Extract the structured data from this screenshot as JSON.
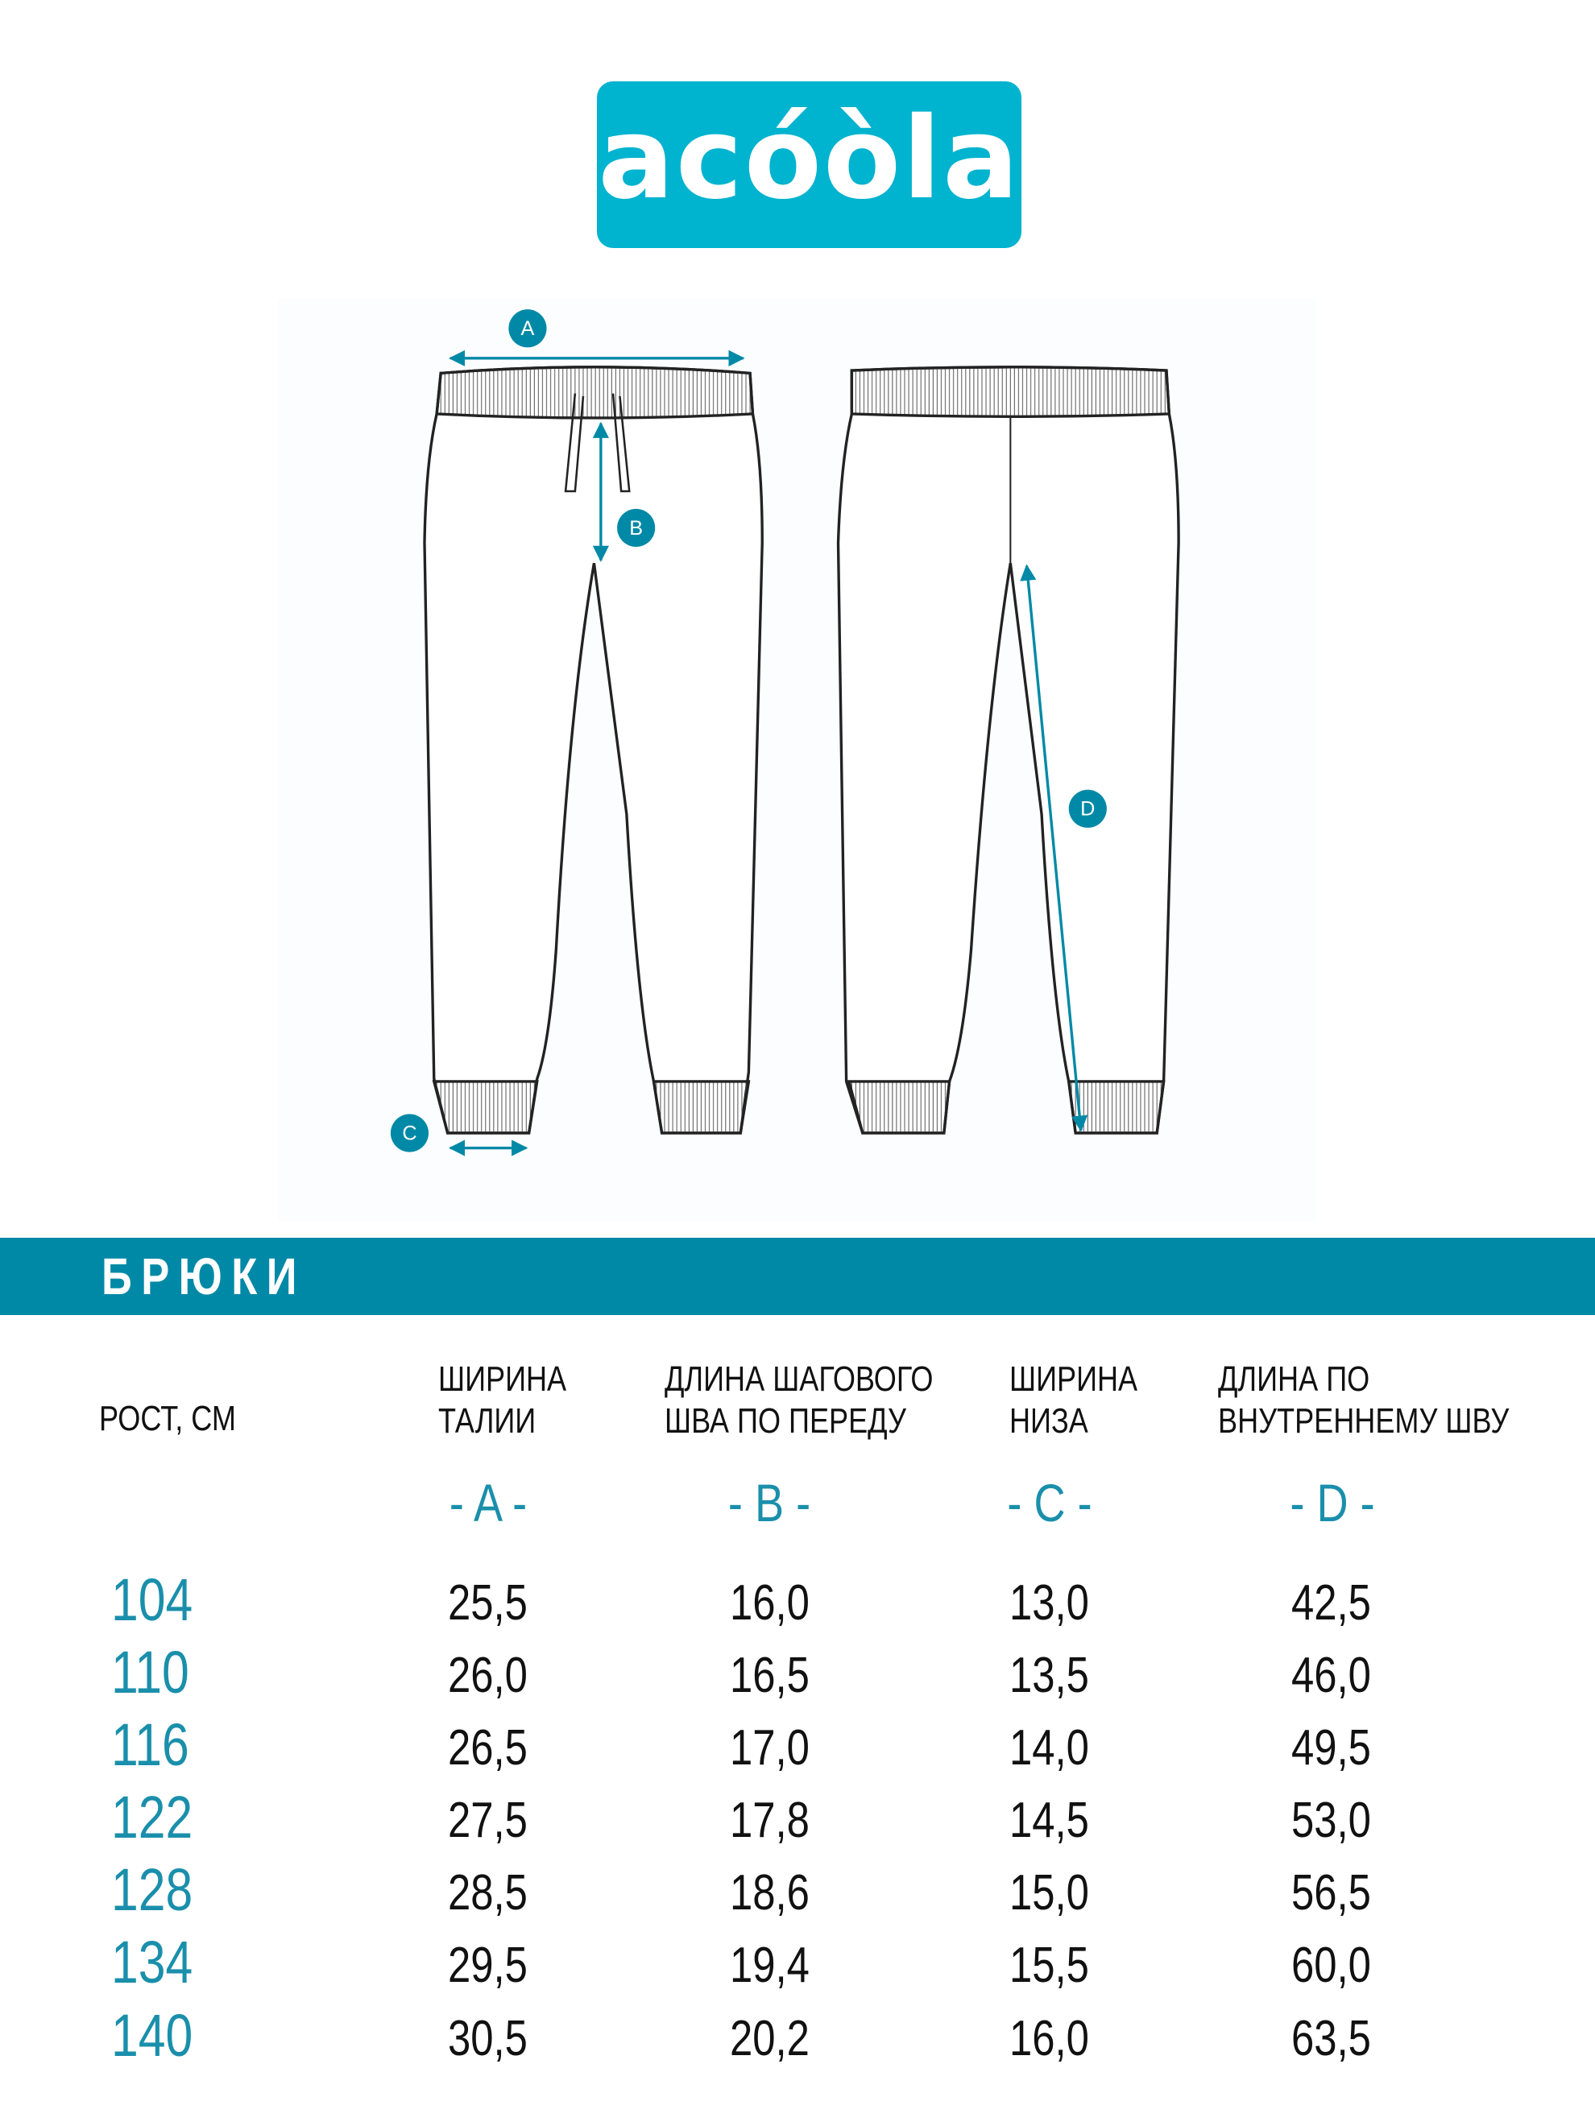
{
  "brand": {
    "name": "acóòla",
    "color": "#00b3cf"
  },
  "diagram": {
    "labels": [
      "A",
      "B",
      "C",
      "D"
    ],
    "accent": "#0089a6"
  },
  "banner": {
    "title": "БРЮКИ",
    "color": "#0089a6"
  },
  "table": {
    "size_header": "РОСТ, СМ",
    "columns": [
      {
        "line1": "ШИРИНА",
        "line2": "ТАЛИИ",
        "code": "- A -"
      },
      {
        "line1": "ДЛИНА ШАГОВОГО",
        "line2": "ШВА ПО ПЕРЕДУ",
        "code": "- B -"
      },
      {
        "line1": "ШИРИНА",
        "line2": "НИЗА",
        "code": "- C -"
      },
      {
        "line1": "ДЛИНА ПО",
        "line2": "ВНУТРЕННЕМУ ШВУ",
        "code": "- D -"
      }
    ],
    "rows": [
      {
        "size": "104",
        "values": [
          "25,5",
          "16,0",
          "13,0",
          "42,5"
        ]
      },
      {
        "size": "110",
        "values": [
          "26,0",
          "16,5",
          "13,5",
          "46,0"
        ]
      },
      {
        "size": "116",
        "values": [
          "26,5",
          "17,0",
          "14,0",
          "49,5"
        ]
      },
      {
        "size": "122",
        "values": [
          "27,5",
          "17,8",
          "14,5",
          "53,0"
        ]
      },
      {
        "size": "128",
        "values": [
          "28,5",
          "18,6",
          "15,0",
          "56,5"
        ]
      },
      {
        "size": "134",
        "values": [
          "29,5",
          "19,4",
          "15,5",
          "60,0"
        ]
      },
      {
        "size": "140",
        "values": [
          "30,5",
          "20,2",
          "16,0",
          "63,5"
        ]
      }
    ]
  }
}
